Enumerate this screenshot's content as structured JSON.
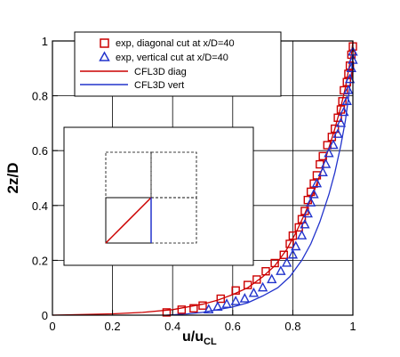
{
  "chart_data": {
    "type": "scatter",
    "xlabel": "u/u",
    "xlabel_sub": "CL",
    "ylabel": "2z/D",
    "xlim": [
      0,
      1
    ],
    "ylim": [
      0,
      1
    ],
    "x_ticks": [
      0,
      0.2,
      0.4,
      0.6,
      0.8,
      1
    ],
    "x_tick_labels": [
      "0",
      "0.2",
      "0.4",
      "0.6",
      "0.8",
      "1"
    ],
    "y_ticks": [
      0,
      0.2,
      0.4,
      0.6,
      0.8,
      1
    ],
    "y_tick_labels": [
      "0",
      "0.2",
      "0.4",
      "0.6",
      "0.8",
      "1"
    ],
    "grid": true,
    "legend_position": "top",
    "colors": {
      "diag": "#cc0000",
      "vert": "#2233cc"
    },
    "series": [
      {
        "name": "exp, diagonal cut at x/D=40",
        "kind": "markers",
        "marker": "square",
        "color": "#cc0000",
        "points": [
          [
            0.38,
            0.01
          ],
          [
            0.43,
            0.02
          ],
          [
            0.47,
            0.025
          ],
          [
            0.5,
            0.035
          ],
          [
            0.56,
            0.06
          ],
          [
            0.61,
            0.09
          ],
          [
            0.65,
            0.11
          ],
          [
            0.68,
            0.13
          ],
          [
            0.71,
            0.16
          ],
          [
            0.74,
            0.19
          ],
          [
            0.77,
            0.22
          ],
          [
            0.79,
            0.26
          ],
          [
            0.8,
            0.29
          ],
          [
            0.82,
            0.32
          ],
          [
            0.83,
            0.35
          ],
          [
            0.84,
            0.38
          ],
          [
            0.85,
            0.42
          ],
          [
            0.86,
            0.45
          ],
          [
            0.87,
            0.48
          ],
          [
            0.88,
            0.51
          ],
          [
            0.89,
            0.55
          ],
          [
            0.9,
            0.58
          ],
          [
            0.915,
            0.62
          ],
          [
            0.93,
            0.65
          ],
          [
            0.94,
            0.68
          ],
          [
            0.95,
            0.72
          ],
          [
            0.96,
            0.75
          ],
          [
            0.965,
            0.78
          ],
          [
            0.97,
            0.82
          ],
          [
            0.98,
            0.85
          ],
          [
            0.985,
            0.88
          ],
          [
            0.99,
            0.91
          ],
          [
            0.995,
            0.95
          ],
          [
            1.0,
            0.98
          ]
        ]
      },
      {
        "name": "exp, vertical cut at x/D=40",
        "kind": "markers",
        "marker": "triangle",
        "color": "#2233cc",
        "points": [
          [
            0.52,
            0.02
          ],
          [
            0.55,
            0.03
          ],
          [
            0.58,
            0.04
          ],
          [
            0.61,
            0.05
          ],
          [
            0.64,
            0.06
          ],
          [
            0.67,
            0.08
          ],
          [
            0.7,
            0.1
          ],
          [
            0.73,
            0.13
          ],
          [
            0.76,
            0.16
          ],
          [
            0.78,
            0.19
          ],
          [
            0.8,
            0.22
          ],
          [
            0.81,
            0.25
          ],
          [
            0.83,
            0.29
          ],
          [
            0.84,
            0.33
          ],
          [
            0.85,
            0.37
          ],
          [
            0.86,
            0.41
          ],
          [
            0.87,
            0.44
          ],
          [
            0.88,
            0.48
          ],
          [
            0.9,
            0.52
          ],
          [
            0.91,
            0.55
          ],
          [
            0.92,
            0.59
          ],
          [
            0.935,
            0.62
          ],
          [
            0.95,
            0.66
          ],
          [
            0.96,
            0.7
          ],
          [
            0.97,
            0.74
          ],
          [
            0.98,
            0.78
          ],
          [
            0.985,
            0.82
          ],
          [
            0.99,
            0.86
          ],
          [
            0.995,
            0.9
          ],
          [
            1.0,
            0.93
          ],
          [
            1.0,
            0.96
          ]
        ]
      },
      {
        "name": "CFL3D diag",
        "kind": "line",
        "color": "#cc0000",
        "points": [
          [
            0.0,
            0.0
          ],
          [
            0.2,
            0.005
          ],
          [
            0.3,
            0.01
          ],
          [
            0.4,
            0.02
          ],
          [
            0.5,
            0.04
          ],
          [
            0.55,
            0.055
          ],
          [
            0.6,
            0.075
          ],
          [
            0.65,
            0.1
          ],
          [
            0.7,
            0.14
          ],
          [
            0.74,
            0.18
          ],
          [
            0.78,
            0.24
          ],
          [
            0.81,
            0.3
          ],
          [
            0.84,
            0.37
          ],
          [
            0.87,
            0.45
          ],
          [
            0.9,
            0.54
          ],
          [
            0.92,
            0.61
          ],
          [
            0.94,
            0.68
          ],
          [
            0.96,
            0.76
          ],
          [
            0.975,
            0.83
          ],
          [
            0.985,
            0.89
          ],
          [
            0.995,
            0.95
          ],
          [
            1.0,
            1.0
          ]
        ]
      },
      {
        "name": "CFL3D vert",
        "kind": "line",
        "color": "#2233cc",
        "points": [
          [
            0.38,
            0.0
          ],
          [
            0.45,
            0.005
          ],
          [
            0.5,
            0.01
          ],
          [
            0.55,
            0.02
          ],
          [
            0.6,
            0.03
          ],
          [
            0.65,
            0.045
          ],
          [
            0.7,
            0.07
          ],
          [
            0.75,
            0.1
          ],
          [
            0.79,
            0.14
          ],
          [
            0.83,
            0.2
          ],
          [
            0.86,
            0.26
          ],
          [
            0.89,
            0.34
          ],
          [
            0.92,
            0.44
          ],
          [
            0.94,
            0.52
          ],
          [
            0.96,
            0.62
          ],
          [
            0.975,
            0.71
          ],
          [
            0.985,
            0.79
          ],
          [
            0.995,
            0.88
          ],
          [
            1.0,
            0.95
          ]
        ]
      }
    ]
  }
}
